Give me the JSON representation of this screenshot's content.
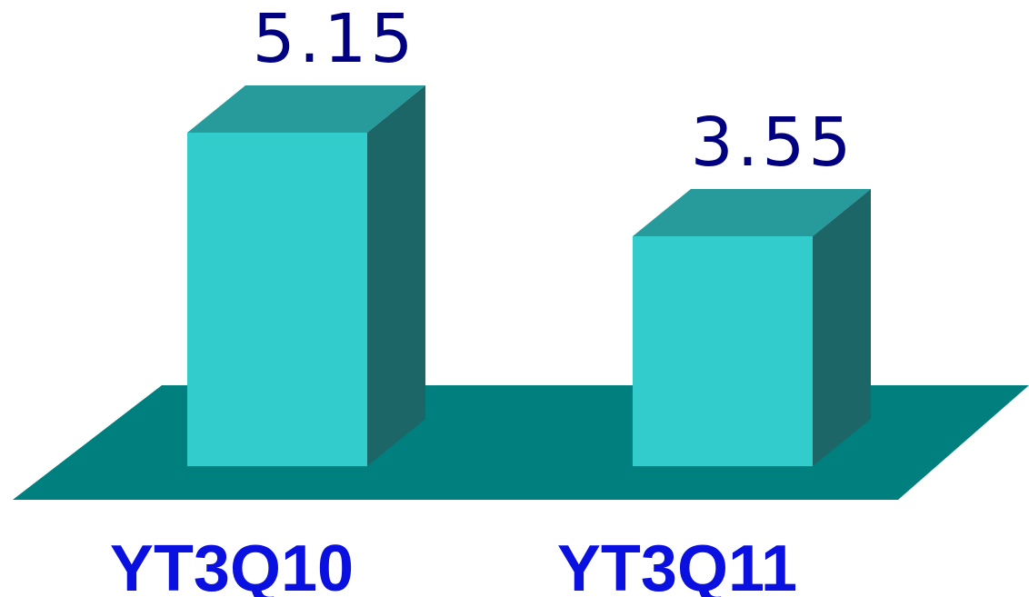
{
  "chart_data": {
    "type": "bar",
    "style": "3d",
    "categories": [
      "YT3Q10",
      "YT3Q11"
    ],
    "values": [
      5.15,
      3.55
    ],
    "data_labels": [
      "5.15",
      "3.55"
    ],
    "ylim": [
      0,
      5.15
    ],
    "grid": false,
    "legend": "none",
    "colors": {
      "bar_front": "#33CCCC",
      "bar_top": "#279B9B",
      "bar_side": "#1C6668",
      "floor": "#007F7F",
      "value_label": "#000080",
      "category_label": "#0A10E0"
    }
  }
}
